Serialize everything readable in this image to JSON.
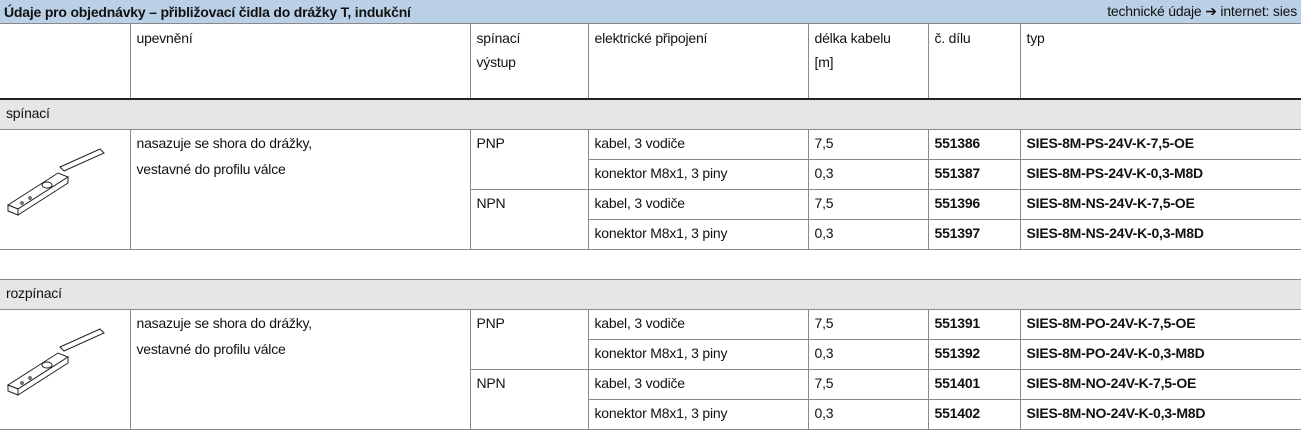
{
  "header": {
    "title": "Údaje pro objednávky – přibližovací čidla do drážky T, indukční",
    "note": "technické údaje ➔ internet: sies"
  },
  "table": {
    "columns": [
      [
        "upevnění"
      ],
      [
        "spínací",
        "výstup"
      ],
      [
        "elektrické připojení"
      ],
      [
        "délka kabelu",
        "[m]"
      ],
      [
        "č. dílu"
      ],
      [
        "typ"
      ]
    ],
    "sections": [
      {
        "name": "spínací",
        "mounting": [
          "nasazuje se shora do drážky,",
          "vestavné do profilu válce"
        ],
        "outputs": [
          {
            "name": "PNP",
            "rows": [
              {
                "connection": "kabel, 3 vodiče",
                "length": "7,5",
                "part": "551386",
                "type": "SIES-8M-PS-24V-K-7,5-OE"
              },
              {
                "connection": "konektor M8x1, 3 piny",
                "length": "0,3",
                "part": "551387",
                "type": "SIES-8M-PS-24V-K-0,3-M8D"
              }
            ]
          },
          {
            "name": "NPN",
            "rows": [
              {
                "connection": "kabel, 3 vodiče",
                "length": "7,5",
                "part": "551396",
                "type": "SIES-8M-NS-24V-K-7,5-OE"
              },
              {
                "connection": "konektor M8x1, 3 piny",
                "length": "0,3",
                "part": "551397",
                "type": "SIES-8M-NS-24V-K-0,3-M8D"
              }
            ]
          }
        ]
      },
      {
        "name": "rozpínací",
        "mounting": [
          "nasazuje se shora do drážky,",
          "vestavné do profilu válce"
        ],
        "outputs": [
          {
            "name": "PNP",
            "rows": [
              {
                "connection": "kabel, 3 vodiče",
                "length": "7,5",
                "part": "551391",
                "type": "SIES-8M-PO-24V-K-7,5-OE"
              },
              {
                "connection": "konektor M8x1, 3 piny",
                "length": "0,3",
                "part": "551392",
                "type": "SIES-8M-PO-24V-K-0,3-M8D"
              }
            ]
          },
          {
            "name": "NPN",
            "rows": [
              {
                "connection": "kabel, 3 vodiče",
                "length": "7,5",
                "part": "551401",
                "type": "SIES-8M-NO-24V-K-7,5-OE"
              },
              {
                "connection": "konektor M8x1, 3 piny",
                "length": "0,3",
                "part": "551402",
                "type": "SIES-8M-NO-24V-K-0,3-M8D"
              }
            ]
          }
        ]
      }
    ]
  }
}
